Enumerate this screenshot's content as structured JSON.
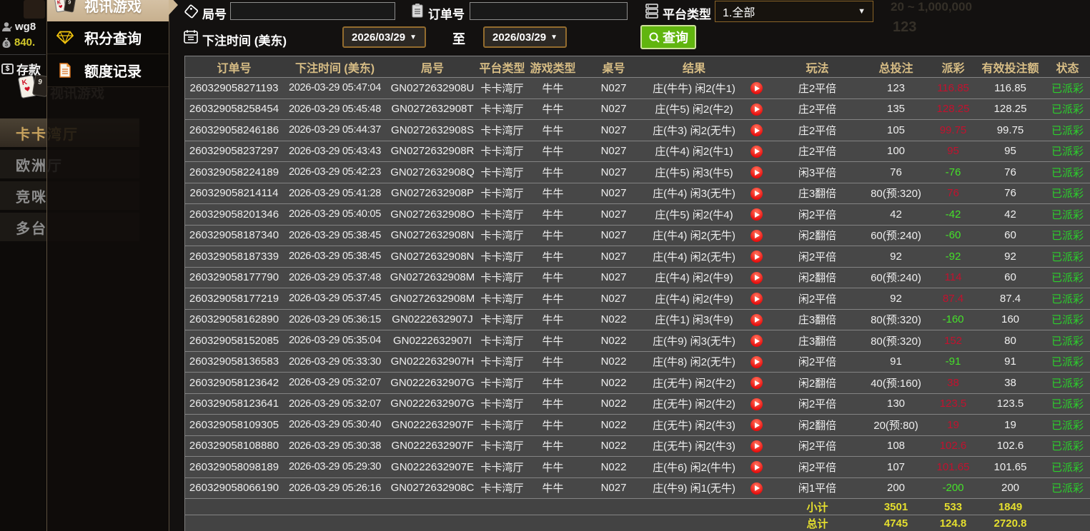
{
  "underlay": {
    "username": "wg8",
    "balance": "840.",
    "deposit_label": "存款",
    "video_game_label": "视讯游戏",
    "tabs": [
      {
        "label": "卡卡湾厅",
        "active": true
      },
      {
        "label": "欧洲厅",
        "active": false
      },
      {
        "label": "竞咪",
        "active": false
      },
      {
        "label": "多台",
        "active": false
      }
    ],
    "ghost_limit": "20 ~ 1,000,000",
    "ghost_value": "123"
  },
  "menu": {
    "items": [
      {
        "label": "视讯游戏",
        "icon": "cards-icon",
        "active": true
      },
      {
        "label": "积分查询",
        "icon": "gem-icon",
        "active": false
      },
      {
        "label": "额度记录",
        "icon": "document-icon",
        "active": false
      }
    ]
  },
  "filters": {
    "round_label": "局号",
    "round_value": "",
    "order_label": "订单号",
    "order_value": "",
    "platform_label": "平台类型",
    "platform_value": "1.全部",
    "bet_time_label": "下注时间 (美东)",
    "date_from": "2026/03/29",
    "date_to": "2026/03/29",
    "to_label": "至",
    "search_label": "查询",
    "dropdown_arrow": "▼"
  },
  "table": {
    "columns": [
      "订单号",
      "下注时间 (美东)",
      "局号",
      "平台类型",
      "游戏类型",
      "桌号",
      "结果",
      "",
      "玩法",
      "总投注",
      "派彩",
      "有效投注额",
      "状态"
    ],
    "rows": [
      {
        "order": "260329058271193",
        "time": "2026-03-29 05:47:04",
        "round": "GN0272632908U",
        "platform": "卡卡湾厅",
        "game": "牛牛",
        "table_no": "N027",
        "result": "庄(牛牛) 闲2(牛1)",
        "bet_type": "庄2平倍",
        "total_bet": "123",
        "payout": "116.85",
        "valid_bet": "116.85",
        "status": "已派彩"
      },
      {
        "order": "260329058258454",
        "time": "2026-03-29 05:45:48",
        "round": "GN0272632908T",
        "platform": "卡卡湾厅",
        "game": "牛牛",
        "table_no": "N027",
        "result": "庄(牛5) 闲2(牛2)",
        "bet_type": "庄2平倍",
        "total_bet": "135",
        "payout": "128.25",
        "valid_bet": "128.25",
        "status": "已派彩"
      },
      {
        "order": "260329058246186",
        "time": "2026-03-29 05:44:37",
        "round": "GN0272632908S",
        "platform": "卡卡湾厅",
        "game": "牛牛",
        "table_no": "N027",
        "result": "庄(牛3) 闲2(无牛)",
        "bet_type": "庄2平倍",
        "total_bet": "105",
        "payout": "99.75",
        "valid_bet": "99.75",
        "status": "已派彩"
      },
      {
        "order": "260329058237297",
        "time": "2026-03-29 05:43:43",
        "round": "GN0272632908R",
        "platform": "卡卡湾厅",
        "game": "牛牛",
        "table_no": "N027",
        "result": "庄(牛4) 闲2(牛1)",
        "bet_type": "庄2平倍",
        "total_bet": "100",
        "payout": "95",
        "valid_bet": "95",
        "status": "已派彩"
      },
      {
        "order": "260329058224189",
        "time": "2026-03-29 05:42:23",
        "round": "GN0272632908Q",
        "platform": "卡卡湾厅",
        "game": "牛牛",
        "table_no": "N027",
        "result": "庄(牛5) 闲3(牛5)",
        "bet_type": "闲3平倍",
        "total_bet": "76",
        "payout": "-76",
        "valid_bet": "76",
        "status": "已派彩"
      },
      {
        "order": "260329058214114",
        "time": "2026-03-29 05:41:28",
        "round": "GN0272632908P",
        "platform": "卡卡湾厅",
        "game": "牛牛",
        "table_no": "N027",
        "result": "庄(牛4) 闲3(无牛)",
        "bet_type": "庄3翻倍",
        "total_bet": "80(预:320)",
        "payout": "76",
        "valid_bet": "76",
        "status": "已派彩"
      },
      {
        "order": "260329058201346",
        "time": "2026-03-29 05:40:05",
        "round": "GN0272632908O",
        "platform": "卡卡湾厅",
        "game": "牛牛",
        "table_no": "N027",
        "result": "庄(牛5) 闲2(牛4)",
        "bet_type": "闲2平倍",
        "total_bet": "42",
        "payout": "-42",
        "valid_bet": "42",
        "status": "已派彩"
      },
      {
        "order": "260329058187340",
        "time": "2026-03-29 05:38:45",
        "round": "GN0272632908N",
        "platform": "卡卡湾厅",
        "game": "牛牛",
        "table_no": "N027",
        "result": "庄(牛4) 闲2(无牛)",
        "bet_type": "闲2翻倍",
        "total_bet": "60(预:240)",
        "payout": "-60",
        "valid_bet": "60",
        "status": "已派彩"
      },
      {
        "order": "260329058187339",
        "time": "2026-03-29 05:38:45",
        "round": "GN0272632908N",
        "platform": "卡卡湾厅",
        "game": "牛牛",
        "table_no": "N027",
        "result": "庄(牛4) 闲2(无牛)",
        "bet_type": "闲2平倍",
        "total_bet": "92",
        "payout": "-92",
        "valid_bet": "92",
        "status": "已派彩"
      },
      {
        "order": "260329058177790",
        "time": "2026-03-29 05:37:48",
        "round": "GN0272632908M",
        "platform": "卡卡湾厅",
        "game": "牛牛",
        "table_no": "N027",
        "result": "庄(牛4) 闲2(牛9)",
        "bet_type": "闲2翻倍",
        "total_bet": "60(预:240)",
        "payout": "114",
        "valid_bet": "60",
        "status": "已派彩"
      },
      {
        "order": "260329058177219",
        "time": "2026-03-29 05:37:45",
        "round": "GN0272632908M",
        "platform": "卡卡湾厅",
        "game": "牛牛",
        "table_no": "N027",
        "result": "庄(牛4) 闲2(牛9)",
        "bet_type": "闲2平倍",
        "total_bet": "92",
        "payout": "87.4",
        "valid_bet": "87.4",
        "status": "已派彩"
      },
      {
        "order": "260329058162890",
        "time": "2026-03-29 05:36:15",
        "round": "GN0222632907J",
        "platform": "卡卡湾厅",
        "game": "牛牛",
        "table_no": "N022",
        "result": "庄(牛1) 闲3(牛9)",
        "bet_type": "庄3翻倍",
        "total_bet": "80(预:320)",
        "payout": "-160",
        "valid_bet": "160",
        "status": "已派彩"
      },
      {
        "order": "260329058152085",
        "time": "2026-03-29 05:35:04",
        "round": "GN0222632907I",
        "platform": "卡卡湾厅",
        "game": "牛牛",
        "table_no": "N022",
        "result": "庄(牛9) 闲3(无牛)",
        "bet_type": "庄3翻倍",
        "total_bet": "80(预:320)",
        "payout": "152",
        "valid_bet": "80",
        "status": "已派彩"
      },
      {
        "order": "260329058136583",
        "time": "2026-03-29 05:33:30",
        "round": "GN0222632907H",
        "platform": "卡卡湾厅",
        "game": "牛牛",
        "table_no": "N022",
        "result": "庄(牛8) 闲2(无牛)",
        "bet_type": "闲2平倍",
        "total_bet": "91",
        "payout": "-91",
        "valid_bet": "91",
        "status": "已派彩"
      },
      {
        "order": "260329058123642",
        "time": "2026-03-29 05:32:07",
        "round": "GN0222632907G",
        "platform": "卡卡湾厅",
        "game": "牛牛",
        "table_no": "N022",
        "result": "庄(无牛) 闲2(牛2)",
        "bet_type": "闲2翻倍",
        "total_bet": "40(预:160)",
        "payout": "38",
        "valid_bet": "38",
        "status": "已派彩"
      },
      {
        "order": "260329058123641",
        "time": "2026-03-29 05:32:07",
        "round": "GN0222632907G",
        "platform": "卡卡湾厅",
        "game": "牛牛",
        "table_no": "N022",
        "result": "庄(无牛) 闲2(牛2)",
        "bet_type": "闲2平倍",
        "total_bet": "130",
        "payout": "123.5",
        "valid_bet": "123.5",
        "status": "已派彩"
      },
      {
        "order": "260329058109305",
        "time": "2026-03-29 05:30:40",
        "round": "GN0222632907F",
        "platform": "卡卡湾厅",
        "game": "牛牛",
        "table_no": "N022",
        "result": "庄(无牛) 闲2(牛3)",
        "bet_type": "闲2翻倍",
        "total_bet": "20(预:80)",
        "payout": "19",
        "valid_bet": "19",
        "status": "已派彩"
      },
      {
        "order": "260329058108880",
        "time": "2026-03-29 05:30:38",
        "round": "GN0222632907F",
        "platform": "卡卡湾厅",
        "game": "牛牛",
        "table_no": "N022",
        "result": "庄(无牛) 闲2(牛3)",
        "bet_type": "闲2平倍",
        "total_bet": "108",
        "payout": "102.6",
        "valid_bet": "102.6",
        "status": "已派彩"
      },
      {
        "order": "260329058098189",
        "time": "2026-03-29 05:29:30",
        "round": "GN0222632907E",
        "platform": "卡卡湾厅",
        "game": "牛牛",
        "table_no": "N022",
        "result": "庄(牛6) 闲2(牛牛)",
        "bet_type": "闲2平倍",
        "total_bet": "107",
        "payout": "101.65",
        "valid_bet": "101.65",
        "status": "已派彩"
      },
      {
        "order": "260329058066190",
        "time": "2026-03-29 05:26:16",
        "round": "GN0272632908C",
        "platform": "卡卡湾厅",
        "game": "牛牛",
        "table_no": "N027",
        "result": "庄(牛9) 闲1(无牛)",
        "bet_type": "闲1平倍",
        "total_bet": "200",
        "payout": "-200",
        "valid_bet": "200",
        "status": "已派彩"
      }
    ],
    "subtotal": {
      "label": "小计",
      "total_bet": "3501",
      "payout": "533",
      "valid_bet": "1849"
    },
    "grand_total": {
      "label": "总计",
      "total_bet": "4745",
      "payout": "124.8",
      "valid_bet": "2720.8"
    }
  },
  "colors": {
    "accent_green_button": "#61b50f",
    "date_border": "#936c2e",
    "payout_win_red": "#c3112e",
    "payout_lose_green": "#45e02a",
    "status_green": "#2bd02b",
    "header_gold": "#d7bd85",
    "totals_yellow": "#e5df2e"
  }
}
